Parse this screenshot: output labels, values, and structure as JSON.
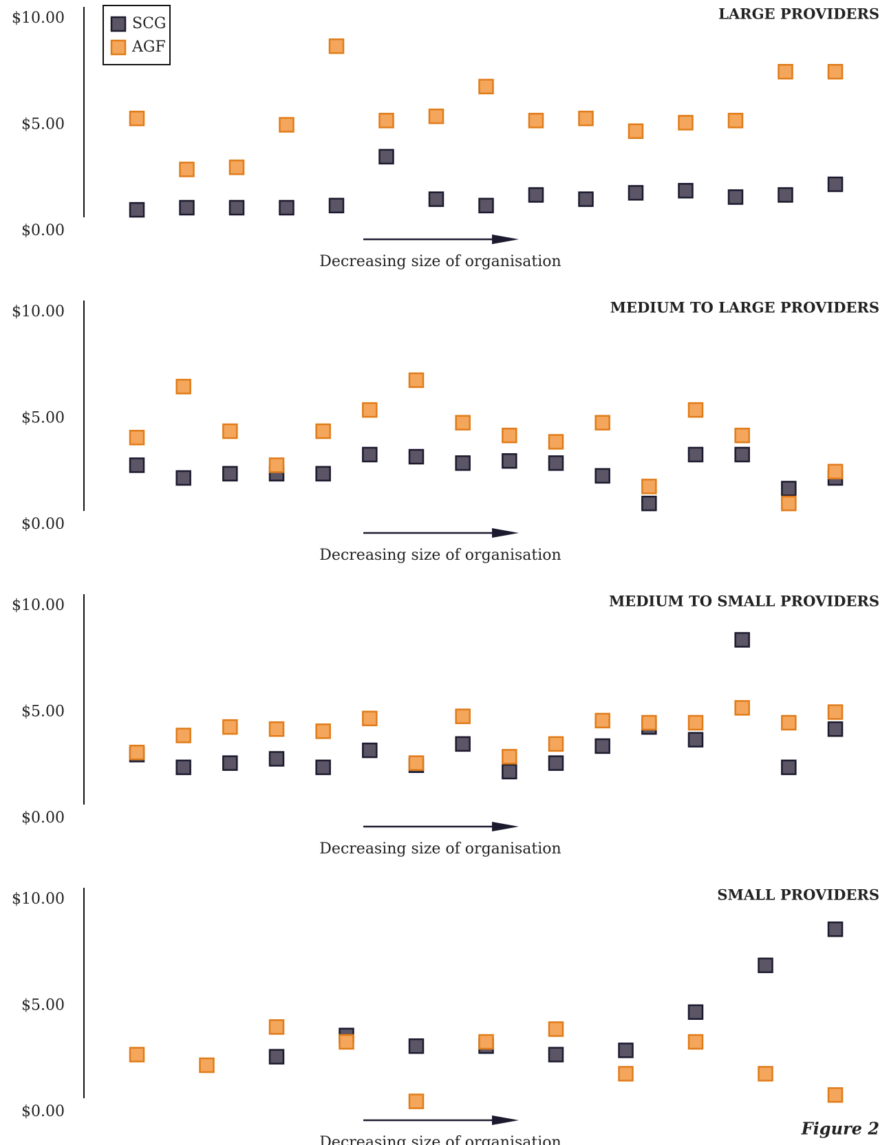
{
  "chart_data": [
    {
      "type": "scatter",
      "title": "LARGE PROVIDERS",
      "x_label": "Decreasing size of organisation",
      "legend": "upper left",
      "categories": [
        null,
        null,
        null,
        null,
        null,
        null,
        null,
        null,
        null,
        null,
        null,
        null,
        null,
        null,
        null
      ],
      "ylim": [
        0,
        10
      ],
      "yticks": [
        {
          "value": 0,
          "label": "$0.00"
        },
        {
          "value": 5,
          "label": "$5.00"
        },
        {
          "value": 10,
          "label": "$10.00"
        }
      ],
      "series": [
        {
          "name": "SCG",
          "color": "#5b5566",
          "values": [
            1.0,
            1.1,
            1.1,
            1.1,
            1.2,
            3.5,
            1.5,
            1.2,
            1.7,
            1.5,
            1.8,
            1.9,
            1.6,
            1.7,
            2.2
          ]
        },
        {
          "name": "AGF",
          "color": "#f4a75c",
          "values": [
            5.3,
            2.9,
            3.0,
            5.0,
            8.7,
            5.2,
            5.4,
            6.8,
            5.2,
            5.3,
            4.7,
            5.1,
            5.2,
            7.5,
            7.5
          ]
        }
      ]
    },
    {
      "type": "scatter",
      "title": "MEDIUM TO LARGE PROVIDERS",
      "x_label": "Decreasing size of organisation",
      "categories": [
        null,
        null,
        null,
        null,
        null,
        null,
        null,
        null,
        null,
        null,
        null,
        null,
        null,
        null,
        null,
        null
      ],
      "ylim": [
        0,
        10
      ],
      "yticks": [
        {
          "value": 0,
          "label": "$0.00"
        },
        {
          "value": 5,
          "label": "$5.00"
        },
        {
          "value": 10,
          "label": "$10.00"
        }
      ],
      "series": [
        {
          "color": "#5b5566",
          "values": [
            2.8,
            2.2,
            2.4,
            2.4,
            2.4,
            3.3,
            3.2,
            2.9,
            3.0,
            2.9,
            2.3,
            1.0,
            3.3,
            3.3,
            1.7,
            2.2
          ]
        },
        {
          "color": "#f4a75c",
          "values": [
            4.1,
            6.5,
            4.4,
            2.8,
            4.4,
            5.4,
            6.8,
            4.8,
            4.2,
            3.9,
            4.8,
            1.8,
            5.4,
            4.2,
            1.0,
            2.5
          ]
        }
      ]
    },
    {
      "type": "scatter",
      "title": "MEDIUM TO SMALL PROVIDERS",
      "x_label": "Decreasing size of organisation",
      "categories": [
        null,
        null,
        null,
        null,
        null,
        null,
        null,
        null,
        null,
        null,
        null,
        null,
        null,
        null,
        null,
        null
      ],
      "ylim": [
        0,
        10
      ],
      "yticks": [
        {
          "value": 0,
          "label": "$0.00"
        },
        {
          "value": 5,
          "label": "$5.00"
        },
        {
          "value": 10,
          "label": "$10.00"
        }
      ],
      "series": [
        {
          "color": "#5b5566",
          "values": [
            3.0,
            2.4,
            2.6,
            2.8,
            2.4,
            3.2,
            2.5,
            3.5,
            2.2,
            2.6,
            3.4,
            4.3,
            3.7,
            8.4,
            2.4,
            4.2
          ]
        },
        {
          "color": "#f4a75c",
          "values": [
            3.1,
            3.9,
            4.3,
            4.2,
            4.1,
            4.7,
            2.6,
            4.8,
            2.9,
            3.5,
            4.6,
            4.5,
            4.5,
            5.2,
            4.5,
            5.0
          ]
        }
      ]
    },
    {
      "type": "scatter",
      "title": "SMALL PROVIDERS",
      "x_label": "Decreasing size of organisation",
      "categories": [
        null,
        null,
        null,
        null,
        null,
        null,
        null,
        null,
        null,
        null,
        null
      ],
      "ylim": [
        0,
        10
      ],
      "yticks": [
        {
          "value": 0,
          "label": "$0.00"
        },
        {
          "value": 5,
          "label": "$5.00"
        },
        {
          "value": 10,
          "label": "$10.00"
        }
      ],
      "series": [
        {
          "color": "#5b5566",
          "values": [
            null,
            null,
            2.6,
            3.6,
            3.1,
            3.1,
            2.7,
            2.9,
            4.7,
            6.9,
            8.6
          ]
        },
        {
          "color": "#f4a75c",
          "values": [
            2.7,
            2.2,
            4.0,
            3.3,
            0.5,
            3.3,
            3.9,
            1.8,
            3.3,
            1.8,
            0.8
          ]
        }
      ]
    }
  ],
  "figure_label": "Figure 2"
}
